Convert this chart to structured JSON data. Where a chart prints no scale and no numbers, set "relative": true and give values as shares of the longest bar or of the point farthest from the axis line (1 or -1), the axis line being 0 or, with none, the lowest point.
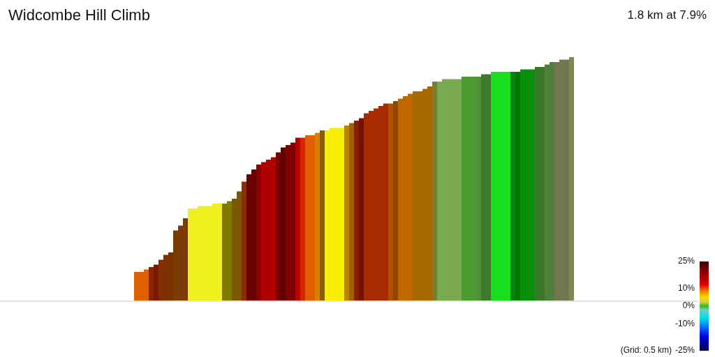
{
  "chart_data": {
    "type": "bar",
    "title": "Widcombe Hill Climb",
    "subtitle": "1.8 km at 7.9%",
    "annotations": [
      "(Grid: 0.5 km)"
    ],
    "relative": true,
    "categories": [
      null,
      null,
      null,
      null,
      null,
      null,
      null,
      null,
      null,
      null,
      null,
      null,
      null,
      null,
      null,
      null,
      null,
      null,
      null,
      null,
      null,
      null,
      null,
      null,
      null,
      null,
      null,
      null,
      null,
      null,
      null,
      null,
      null,
      null,
      null,
      null,
      null,
      null,
      null,
      null,
      null,
      null,
      null,
      null,
      null,
      null,
      null,
      null,
      null,
      null,
      null,
      null,
      null,
      null,
      null,
      null,
      null,
      null,
      null,
      null,
      null,
      null,
      null,
      null,
      null,
      null,
      null,
      null,
      null,
      null,
      null,
      null,
      null,
      null,
      null,
      null,
      null,
      null,
      null,
      null,
      null,
      null,
      null,
      null,
      null,
      null,
      null,
      null,
      null,
      null
    ],
    "values": [
      0.12,
      0.12,
      0.13,
      0.14,
      0.15,
      0.17,
      0.19,
      0.2,
      0.29,
      0.31,
      0.34,
      0.38,
      0.38,
      0.39,
      0.39,
      0.39,
      0.4,
      0.4,
      0.4,
      0.41,
      0.42,
      0.45,
      0.49,
      0.52,
      0.54,
      0.56,
      0.57,
      0.58,
      0.59,
      0.61,
      0.63,
      0.64,
      0.65,
      0.67,
      0.67,
      0.68,
      0.68,
      0.69,
      0.7,
      0.7,
      0.71,
      0.71,
      0.71,
      0.72,
      0.73,
      0.74,
      0.75,
      0.77,
      0.78,
      0.79,
      0.8,
      0.81,
      0.81,
      0.82,
      0.83,
      0.84,
      0.85,
      0.86,
      0.86,
      0.87,
      0.88,
      0.9,
      0.9,
      0.91,
      0.91,
      0.91,
      0.91,
      0.92,
      0.92,
      0.92,
      0.92,
      0.93,
      0.93,
      0.94,
      0.94,
      0.94,
      0.94,
      0.94,
      0.94,
      0.95,
      0.95,
      0.95,
      0.96,
      0.96,
      0.97,
      0.98,
      0.98,
      0.99,
      0.99,
      1
    ],
    "colors": [
      "#e06000",
      "#e06000",
      "#e06000",
      "#8a2400",
      "#7a1a00",
      "#803000",
      "#803000",
      "#803000",
      "#7a3c00",
      "#7a3c00",
      "#7a3c00",
      "#f0f020",
      "#f0f020",
      "#f0f020",
      "#f0f020",
      "#f0f020",
      "#f0f020",
      "#f0f020",
      "#807a00",
      "#807a00",
      "#7a5800",
      "#7a5800",
      "#8a3000",
      "#6a0000",
      "#6a0000",
      "#8a0000",
      "#b00000",
      "#b00000",
      "#b00000",
      "#780000",
      "#600000",
      "#800000",
      "#800000",
      "#c00000",
      "#d02800",
      "#e06000",
      "#e06000",
      "#d88000",
      "#886000",
      "#f8ee00",
      "#f8ee00",
      "#f8ee00",
      "#f8ee00",
      "#c08000",
      "#a06000",
      "#882000",
      "#781000",
      "#a82a00",
      "#a82a00",
      "#a82a00",
      "#a82a00",
      "#a82a00",
      "#b05000",
      "#904800",
      "#c06800",
      "#c06800",
      "#c06800",
      "#a86800",
      "#a86800",
      "#a86800",
      "#a86800",
      "#788030",
      "#78a850",
      "#78a850",
      "#78a850",
      "#78a850",
      "#78a850",
      "#4a9a30",
      "#4a9a30",
      "#4a9a30",
      "#509038",
      "#407830",
      "#407830",
      "#18e020",
      "#18e020",
      "#18e020",
      "#18e020",
      "#0a8010",
      "#007800",
      "#08900a",
      "#08900a",
      "#08900a",
      "#387828",
      "#387828",
      "#508038",
      "#508038",
      "#707850",
      "#707850",
      "#707850",
      "#808850"
    ],
    "clim": [
      -25,
      25
    ],
    "cticks": [
      {
        "value": 25,
        "label": "25%"
      },
      {
        "value": 10,
        "label": "10%"
      },
      {
        "value": 0,
        "label": "0%"
      },
      {
        "value": -10,
        "label": "-10%"
      },
      {
        "value": -25,
        "label": "-25%"
      }
    ]
  }
}
